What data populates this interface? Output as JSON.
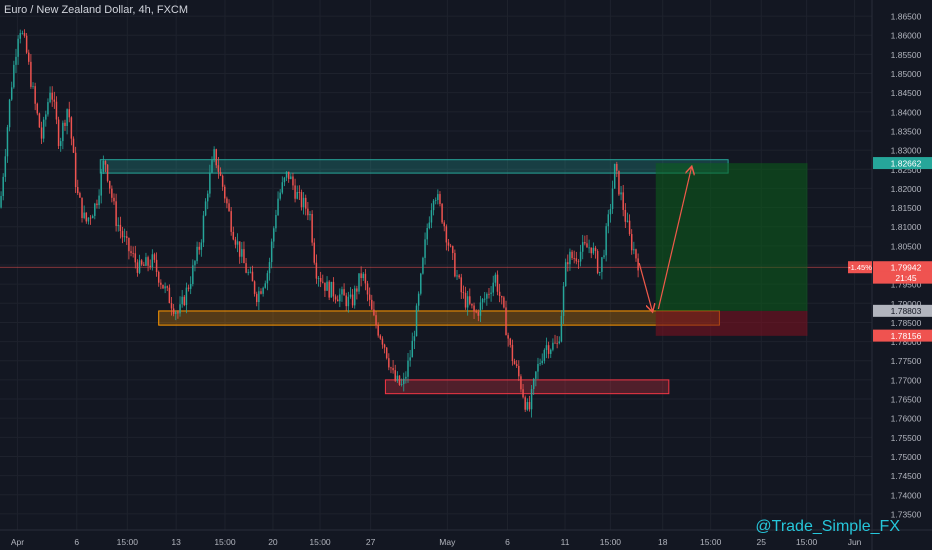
{
  "header": {
    "title": "Euro / New Zealand Dollar, 4h, FXCM"
  },
  "watermark": "@Trade_Simple_FX",
  "chart_data": {
    "type": "candlestick",
    "title": "Euro / New Zealand Dollar, 4h, FXCM",
    "ylim": [
      1.7308,
      1.8692
    ],
    "y_ticks": [
      "1.86500",
      "1.86000",
      "1.85500",
      "1.85000",
      "1.84500",
      "1.84000",
      "1.83500",
      "1.83000",
      "1.82500",
      "1.82000",
      "1.81500",
      "1.81000",
      "1.80500",
      "1.80000",
      "1.79500",
      "1.79000",
      "1.78500",
      "1.78000",
      "1.77500",
      "1.77000",
      "1.76500",
      "1.76000",
      "1.75500",
      "1.75000",
      "1.74500",
      "1.74000",
      "1.73500"
    ],
    "x_ticks": [
      "Apr",
      "6",
      "15:00",
      "13",
      "15:00",
      "20",
      "15:00",
      "27",
      "May",
      "6",
      "11",
      "15:00",
      "18",
      "15:00",
      "25",
      "15:00",
      "Jun"
    ],
    "price_labels": [
      {
        "text": "1.82662",
        "value": 1.82662,
        "color": "#26a69a"
      },
      {
        "text": "1.79942",
        "value": 1.79942,
        "color": "#ef5350"
      },
      {
        "text": "21:45",
        "value": 1.7967,
        "color": "#ef5350"
      },
      {
        "text": "1.78803",
        "value": 1.78803,
        "color": "#b2b5be"
      },
      {
        "text": "1.78156",
        "value": 1.78156,
        "color": "#ef5350"
      }
    ],
    "change_label": "-1.45%",
    "current_price": 1.79942,
    "zones": [
      {
        "name": "resistance",
        "x0": 0.115,
        "x1": 0.835,
        "y0": 1.8275,
        "y1": 1.824,
        "color": "#26a69a"
      },
      {
        "name": "support",
        "x0": 0.182,
        "x1": 0.825,
        "y0": 1.788,
        "y1": 1.7843,
        "color": "#ff9800"
      },
      {
        "name": "demand",
        "x0": 0.442,
        "x1": 0.767,
        "y0": 1.77,
        "y1": 1.7664,
        "color": "#f23645"
      }
    ],
    "position": {
      "x0": 0.752,
      "x1": 0.926,
      "target": 1.8266,
      "entry": 1.788,
      "stop": 1.7815
    },
    "arrows": [
      {
        "from": [
          0.733,
          1.8005
        ],
        "to": [
          0.748,
          1.788
        ]
      },
      {
        "from": [
          0.755,
          1.7885
        ],
        "to": [
          0.793,
          1.8255
        ]
      }
    ],
    "path": [
      [
        0.0,
        1.815
      ],
      [
        0.012,
        1.845
      ],
      [
        0.022,
        1.863
      ],
      [
        0.03,
        1.856
      ],
      [
        0.04,
        1.842
      ],
      [
        0.048,
        1.833
      ],
      [
        0.058,
        1.847
      ],
      [
        0.068,
        1.832
      ],
      [
        0.078,
        1.842
      ],
      [
        0.088,
        1.819
      ],
      [
        0.098,
        1.811
      ],
      [
        0.11,
        1.816
      ],
      [
        0.12,
        1.828
      ],
      [
        0.133,
        1.812
      ],
      [
        0.145,
        1.805
      ],
      [
        0.16,
        1.799
      ],
      [
        0.175,
        1.801
      ],
      [
        0.19,
        1.793
      ],
      [
        0.205,
        1.787
      ],
      [
        0.218,
        1.796
      ],
      [
        0.23,
        1.806
      ],
      [
        0.238,
        1.82
      ],
      [
        0.246,
        1.829
      ],
      [
        0.256,
        1.82
      ],
      [
        0.266,
        1.81
      ],
      [
        0.28,
        1.8
      ],
      [
        0.295,
        1.792
      ],
      [
        0.308,
        1.799
      ],
      [
        0.318,
        1.817
      ],
      [
        0.33,
        1.824
      ],
      [
        0.343,
        1.817
      ],
      [
        0.355,
        1.814
      ],
      [
        0.362,
        1.799
      ],
      [
        0.375,
        1.794
      ],
      [
        0.39,
        1.792
      ],
      [
        0.403,
        1.79
      ],
      [
        0.415,
        1.798
      ],
      [
        0.428,
        1.786
      ],
      [
        0.44,
        1.78
      ],
      [
        0.452,
        1.77
      ],
      [
        0.462,
        1.768
      ],
      [
        0.472,
        1.778
      ],
      [
        0.48,
        1.791
      ],
      [
        0.49,
        1.81
      ],
      [
        0.498,
        1.82
      ],
      [
        0.508,
        1.812
      ],
      [
        0.518,
        1.802
      ],
      [
        0.53,
        1.792
      ],
      [
        0.545,
        1.787
      ],
      [
        0.558,
        1.792
      ],
      [
        0.568,
        1.797
      ],
      [
        0.576,
        1.789
      ],
      [
        0.586,
        1.777
      ],
      [
        0.596,
        1.77
      ],
      [
        0.606,
        1.761
      ],
      [
        0.615,
        1.772
      ],
      [
        0.625,
        1.779
      ],
      [
        0.64,
        1.779
      ],
      [
        0.65,
        1.802
      ],
      [
        0.658,
        1.802
      ],
      [
        0.668,
        1.804
      ],
      [
        0.678,
        1.805
      ],
      [
        0.688,
        1.798
      ],
      [
        0.698,
        1.812
      ],
      [
        0.705,
        1.825
      ],
      [
        0.712,
        1.818
      ],
      [
        0.722,
        1.807
      ],
      [
        0.733,
        1.8
      ]
    ]
  }
}
